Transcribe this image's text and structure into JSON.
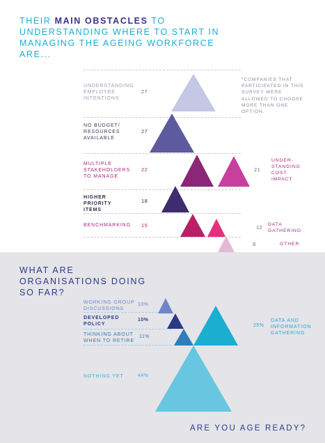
{
  "section1": {
    "title_part1": "THEIR ",
    "title_bold": "MAIN OBSTACLES",
    "title_part2": " TO UNDERSTANDING  WHERE TO START IN MANAGING THE AGEING WORKFORCE ARE...",
    "note": "*COMPANIES THAT PARTICIPATED IN THIS SURVEY WERE ALLOWED TO CHOOSE MORE THAN ONE OPTION.",
    "items": [
      {
        "label": "UNDERSTANDING EMPLOYEE INTENTIONS",
        "value": "27",
        "color": "#c4c8e4",
        "label_color": "#9a9ab0"
      },
      {
        "label": "NO BUDGET/ RESOURCES AVAILABLE",
        "value": "27",
        "color": "#5d5a9e",
        "label_color": "#3a3a5a"
      },
      {
        "label": "MULTIPLE STAKEHOLDERS TO MANAGE",
        "value": "22",
        "color": "#8c2676",
        "label_color": "#a3297f"
      },
      {
        "label": "HIGHER PRIORITY ITEMS",
        "value": "18",
        "color": "#3e2c6e",
        "label_color": "#2b2b4b"
      },
      {
        "label": "BENCHMARKING",
        "value": "15",
        "color": "#b81f64",
        "label_color": "#a3297f"
      }
    ],
    "right_items": [
      {
        "label": "UNDER-STANDING COST IMPACT",
        "value": "21",
        "color": "#c8409e"
      },
      {
        "label": "DATA GATHERING",
        "value": "12",
        "color": "#e52f7a"
      },
      {
        "label": "OTHER",
        "value": "9",
        "color": "#e6b8d8"
      }
    ]
  },
  "section2": {
    "title": "WHAT ARE ORGANISATIONS DOING SO FAR?",
    "items": [
      {
        "label": "WORKING GROUP DISCUSSIONS",
        "value": "10%",
        "color": "#6f86c6",
        "label_color": "#6f86c6"
      },
      {
        "label": "DEVELOPED POLICY",
        "value": "10%",
        "color": "#2a3a86",
        "label_color": "#2a3a86"
      },
      {
        "label": "THINKING ABOUT WHEN TO RETIRE",
        "value": "11%",
        "color": "#2c7fb8",
        "label_color": "#2c7fb8"
      },
      {
        "label": "NOTHING YET",
        "value": "44%",
        "color": "#69c6e0",
        "label_color": "#3fb0d5"
      }
    ],
    "right_item": {
      "label": "DATA AND INFORMATION GATHERING",
      "value": "25%",
      "color": "#1aaed1"
    },
    "footer": "ARE YOU AGE READY?"
  }
}
